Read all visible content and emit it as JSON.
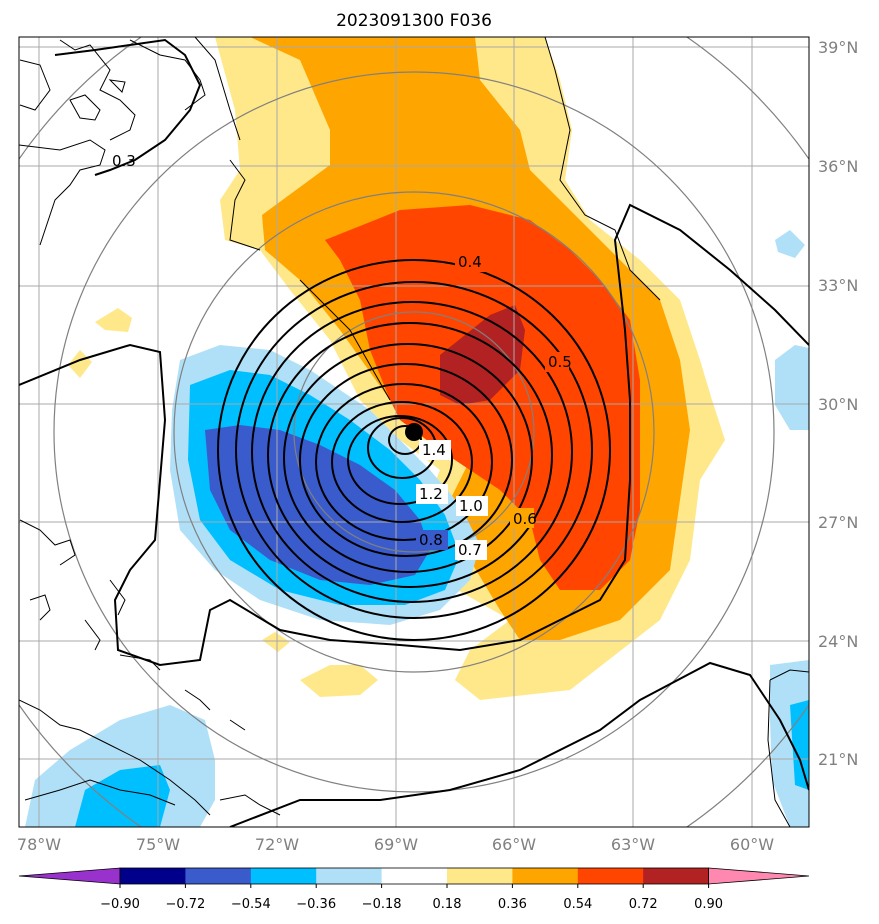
{
  "title": "2023091300 F036",
  "lat_labels": [
    "39°N",
    "36°N",
    "33°N",
    "30°N",
    "27°N",
    "24°N",
    "21°N"
  ],
  "lon_labels": [
    "78°W",
    "75°W",
    "72°W",
    "69°W",
    "66°W",
    "63°W",
    "60°W"
  ],
  "colorbar": {
    "ticks": [
      "−0.90",
      "−0.72",
      "−0.54",
      "−0.36",
      "−0.18",
      "0.18",
      "0.36",
      "0.54",
      "0.72",
      "0.90"
    ],
    "colors": [
      "#9932cc",
      "#00008b",
      "#3a5bcc",
      "#00bfff",
      "#b0e0f8",
      "#ffffff",
      "#ffe88a",
      "#ffa500",
      "#ff4500",
      "#b22222",
      "#ff88b0"
    ]
  },
  "contour_labels": [
    "0.3",
    "0.4",
    "0.5",
    "0.6",
    "0.7",
    "0.8",
    "1.0",
    "1.2",
    "1.4"
  ],
  "colors": {
    "grid": "#a9a9a9",
    "rings": "#808080",
    "coast": "#000000"
  }
}
